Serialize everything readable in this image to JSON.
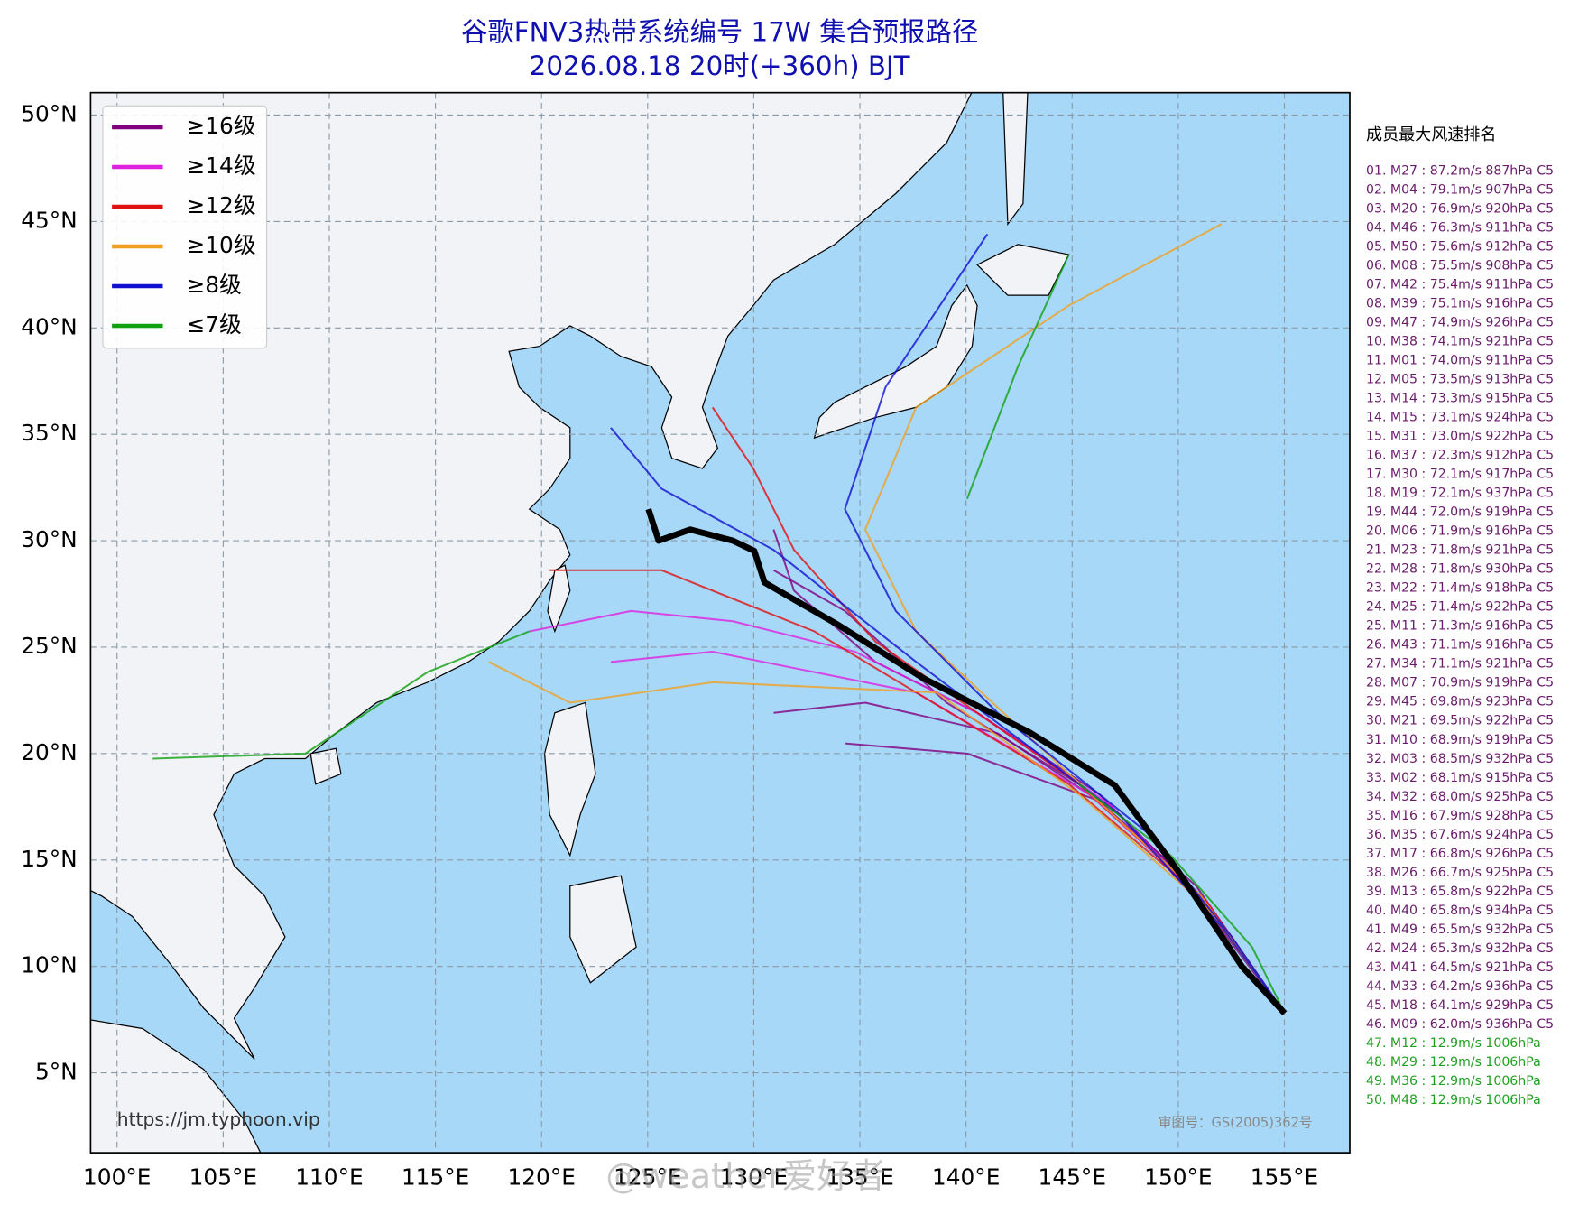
{
  "header": {
    "title": "谷歌FNV3热带系统编号 17W 集合预报路径",
    "subtitle": "2026.08.18 20时(+360h) BJT"
  },
  "map": {
    "lon_ticks": [
      {
        "value": 100,
        "label": "100°E"
      },
      {
        "value": 105,
        "label": "105°E"
      },
      {
        "value": 110,
        "label": "110°E"
      },
      {
        "value": 115,
        "label": "115°E"
      },
      {
        "value": 120,
        "label": "120°E"
      },
      {
        "value": 125,
        "label": "125°E"
      },
      {
        "value": 130,
        "label": "130°E"
      },
      {
        "value": 135,
        "label": "135°E"
      },
      {
        "value": 140,
        "label": "140°E"
      },
      {
        "value": 145,
        "label": "145°E"
      },
      {
        "value": 150,
        "label": "150°E"
      },
      {
        "value": 155,
        "label": "155°E"
      }
    ],
    "lat_ticks": [
      {
        "value": 50,
        "label": "50°N"
      },
      {
        "value": 45,
        "label": "45°N"
      },
      {
        "value": 40,
        "label": "40°N"
      },
      {
        "value": 35,
        "label": "35°N"
      },
      {
        "value": 30,
        "label": "30°N"
      },
      {
        "value": 25,
        "label": "25°N"
      },
      {
        "value": 20,
        "label": "20°N"
      },
      {
        "value": 15,
        "label": "15°N"
      },
      {
        "value": 10,
        "label": "10°N"
      },
      {
        "value": 5,
        "label": "5°N"
      }
    ],
    "grid": true,
    "legend": [
      {
        "label": "≥16级",
        "color": "#800080"
      },
      {
        "label": "≥14级",
        "color": "#e020e0"
      },
      {
        "label": "≥12级",
        "color": "#e01010"
      },
      {
        "label": "≥10级",
        "color": "#f0a020"
      },
      {
        "label": "≥8级",
        "color": "#1010d0"
      },
      {
        "label": "≤7级",
        "color": "#10a010"
      }
    ]
  },
  "ranking": {
    "title": "成员最大风速排名",
    "entries": [
      {
        "text": "01. M27 : 87.2m/s 887hPa C5",
        "color": "#6a1a6a"
      },
      {
        "text": "02. M04 : 79.1m/s 907hPa C5",
        "color": "#6a1a6a"
      },
      {
        "text": "03. M20 : 76.9m/s 920hPa C5",
        "color": "#6a1a6a"
      },
      {
        "text": "04. M46 : 76.3m/s 911hPa C5",
        "color": "#6a1a6a"
      },
      {
        "text": "05. M50 : 75.6m/s 912hPa C5",
        "color": "#6a1a6a"
      },
      {
        "text": "06. M08 : 75.5m/s 908hPa C5",
        "color": "#6a1a6a"
      },
      {
        "text": "07. M42 : 75.4m/s 911hPa C5",
        "color": "#6a1a6a"
      },
      {
        "text": "08. M39 : 75.1m/s 916hPa C5",
        "color": "#6a1a6a"
      },
      {
        "text": "09. M47 : 74.9m/s 926hPa C5",
        "color": "#6a1a6a"
      },
      {
        "text": "10. M38 : 74.1m/s 921hPa C5",
        "color": "#6a1a6a"
      },
      {
        "text": "11. M01 : 74.0m/s 911hPa C5",
        "color": "#6a1a6a"
      },
      {
        "text": "12. M05 : 73.5m/s 913hPa C5",
        "color": "#6a1a6a"
      },
      {
        "text": "13. M14 : 73.3m/s 915hPa C5",
        "color": "#6a1a6a"
      },
      {
        "text": "14. M15 : 73.1m/s 924hPa C5",
        "color": "#6a1a6a"
      },
      {
        "text": "15. M31 : 73.0m/s 922hPa C5",
        "color": "#6a1a6a"
      },
      {
        "text": "16. M37 : 72.3m/s 912hPa C5",
        "color": "#6a1a6a"
      },
      {
        "text": "17. M30 : 72.1m/s 917hPa C5",
        "color": "#6a1a6a"
      },
      {
        "text": "18. M19 : 72.1m/s 937hPa C5",
        "color": "#6a1a6a"
      },
      {
        "text": "19. M44 : 72.0m/s 919hPa C5",
        "color": "#6a1a6a"
      },
      {
        "text": "20. M06 : 71.9m/s 916hPa C5",
        "color": "#6a1a6a"
      },
      {
        "text": "21. M23 : 71.8m/s 921hPa C5",
        "color": "#6a1a6a"
      },
      {
        "text": "22. M28 : 71.8m/s 930hPa C5",
        "color": "#6a1a6a"
      },
      {
        "text": "23. M22 : 71.4m/s 918hPa C5",
        "color": "#6a1a6a"
      },
      {
        "text": "24. M25 : 71.4m/s 922hPa C5",
        "color": "#6a1a6a"
      },
      {
        "text": "25. M11 : 71.3m/s 916hPa C5",
        "color": "#6a1a6a"
      },
      {
        "text": "26. M43 : 71.1m/s 916hPa C5",
        "color": "#6a1a6a"
      },
      {
        "text": "27. M34 : 71.1m/s 921hPa C5",
        "color": "#6a1a6a"
      },
      {
        "text": "28. M07 : 70.9m/s 919hPa C5",
        "color": "#6a1a6a"
      },
      {
        "text": "29. M45 : 69.8m/s 923hPa C5",
        "color": "#6a1a6a"
      },
      {
        "text": "30. M21 : 69.5m/s 922hPa C5",
        "color": "#6a1a6a"
      },
      {
        "text": "31. M10 : 68.9m/s 919hPa C5",
        "color": "#6a1a6a"
      },
      {
        "text": "32. M03 : 68.5m/s 932hPa C5",
        "color": "#6a1a6a"
      },
      {
        "text": "33. M02 : 68.1m/s 915hPa C5",
        "color": "#6a1a6a"
      },
      {
        "text": "34. M32 : 68.0m/s 925hPa C5",
        "color": "#6a1a6a"
      },
      {
        "text": "35. M16 : 67.9m/s 928hPa C5",
        "color": "#6a1a6a"
      },
      {
        "text": "36. M35 : 67.6m/s 924hPa C5",
        "color": "#6a1a6a"
      },
      {
        "text": "37. M17 : 66.8m/s 926hPa C5",
        "color": "#6a1a6a"
      },
      {
        "text": "38. M26 : 66.7m/s 925hPa C5",
        "color": "#6a1a6a"
      },
      {
        "text": "39. M13 : 65.8m/s 922hPa C5",
        "color": "#6a1a6a"
      },
      {
        "text": "40. M40 : 65.8m/s 934hPa C5",
        "color": "#6a1a6a"
      },
      {
        "text": "41. M49 : 65.5m/s 932hPa C5",
        "color": "#6a1a6a"
      },
      {
        "text": "42. M24 : 65.3m/s 932hPa C5",
        "color": "#6a1a6a"
      },
      {
        "text": "43. M41 : 64.5m/s 921hPa C5",
        "color": "#6a1a6a"
      },
      {
        "text": "44. M33 : 64.2m/s 936hPa C5",
        "color": "#6a1a6a"
      },
      {
        "text": "45. M18 : 64.1m/s 929hPa C5",
        "color": "#6a1a6a"
      },
      {
        "text": "46. M09 : 62.0m/s 936hPa C5",
        "color": "#6a1a6a"
      },
      {
        "text": "47. M12 : 12.9m/s 1006hPa",
        "color": "#20a020"
      },
      {
        "text": "48. M29 : 12.9m/s 1006hPa",
        "color": "#20a020"
      },
      {
        "text": "49. M36 : 12.9m/s 1006hPa",
        "color": "#20a020"
      },
      {
        "text": "50. M48 : 12.9m/s 1006hPa",
        "color": "#20a020"
      }
    ]
  },
  "source": "https://jm.typhoon.vip",
  "approval": "审图号：GS(2005)362号",
  "watermark": "@weather爱好者"
}
